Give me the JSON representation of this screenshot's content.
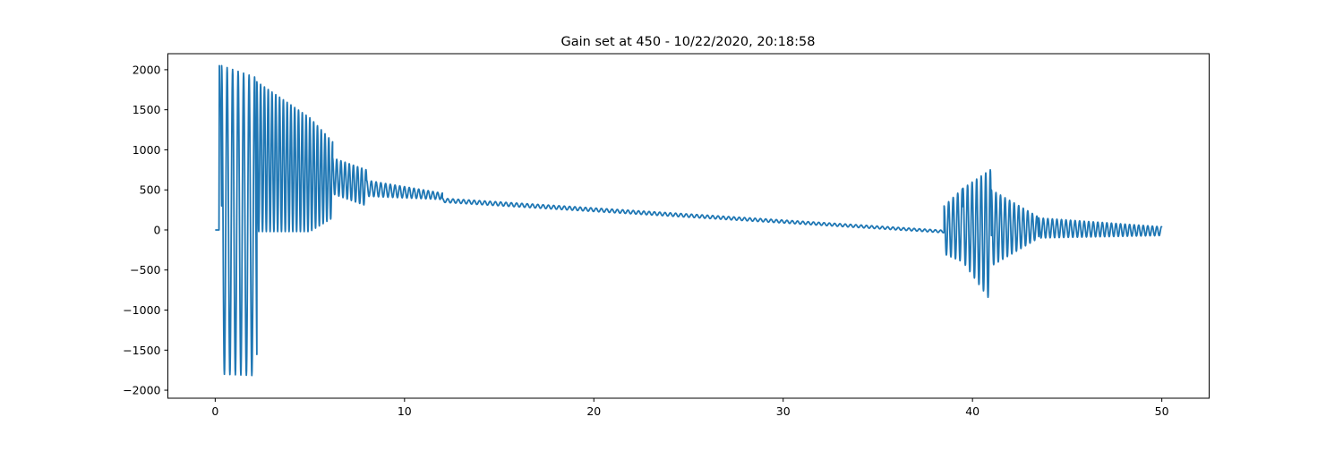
{
  "chart_data": {
    "type": "line",
    "title": "Gain set at 450 - 10/22/2020, 20:18:58",
    "xlabel": "",
    "ylabel": "",
    "xlim": [
      -2.5,
      52.5
    ],
    "ylim": [
      -2100,
      2200
    ],
    "xticks": [
      0,
      10,
      20,
      30,
      40,
      50
    ],
    "yticks": [
      -2000,
      -1500,
      -1000,
      -500,
      0,
      500,
      1000,
      1500,
      2000
    ],
    "grid": false,
    "legend": "none",
    "series": [
      {
        "color": "#1f77b4",
        "segments": [
          {
            "kind": "points",
            "x": [
              0,
              0.15,
              0.2,
              0.22,
              0.26,
              0.3,
              0.34
            ],
            "y": [
              0,
              0,
              0,
              2050,
              1550,
              1560,
              300
            ]
          },
          {
            "kind": "osc",
            "x0": 0.34,
            "x1": 2.2,
            "period": 0.29,
            "hi_start": 2050,
            "hi_end": 1900,
            "lo_start": -1800,
            "lo_end": -1820
          },
          {
            "kind": "osc",
            "x0": 2.2,
            "x1": 5.0,
            "period": 0.2,
            "hi_start": 1850,
            "hi_end": 1400,
            "lo_start": -20,
            "lo_end": -20
          },
          {
            "kind": "osc",
            "x0": 5.0,
            "x1": 6.2,
            "period": 0.2,
            "hi_start": 1400,
            "hi_end": 1100,
            "lo_start": -20,
            "lo_end": 150
          },
          {
            "kind": "osc",
            "x0": 6.2,
            "x1": 8.0,
            "period": 0.22,
            "hi_start": 900,
            "hi_end": 750,
            "lo_start": 450,
            "lo_end": 300
          },
          {
            "kind": "osc",
            "x0": 8.0,
            "x1": 12.0,
            "period": 0.25,
            "hi_start": 620,
            "hi_end": 460,
            "lo_start": 420,
            "lo_end": 380
          },
          {
            "kind": "osc",
            "x0": 12.0,
            "x1": 38.5,
            "period": 0.28,
            "hi_start": 395,
            "hi_end": -5,
            "lo_start": 345,
            "lo_end": -35
          },
          {
            "kind": "osc",
            "x0": 38.5,
            "x1": 39.5,
            "period": 0.24,
            "hi_start": 300,
            "hi_end": 520,
            "lo_start": -300,
            "lo_end": -400
          },
          {
            "kind": "osc",
            "x0": 39.5,
            "x1": 41.0,
            "period": 0.24,
            "hi_start": 520,
            "hi_end": 760,
            "lo_start": -400,
            "lo_end": -900
          },
          {
            "kind": "osc",
            "x0": 41.0,
            "x1": 43.5,
            "period": 0.24,
            "hi_start": 500,
            "hi_end": 160,
            "lo_start": -450,
            "lo_end": -100
          },
          {
            "kind": "osc",
            "x0": 43.5,
            "x1": 50.0,
            "period": 0.24,
            "hi_start": 150,
            "hi_end": 40,
            "lo_start": -100,
            "lo_end": -70
          }
        ]
      }
    ]
  }
}
